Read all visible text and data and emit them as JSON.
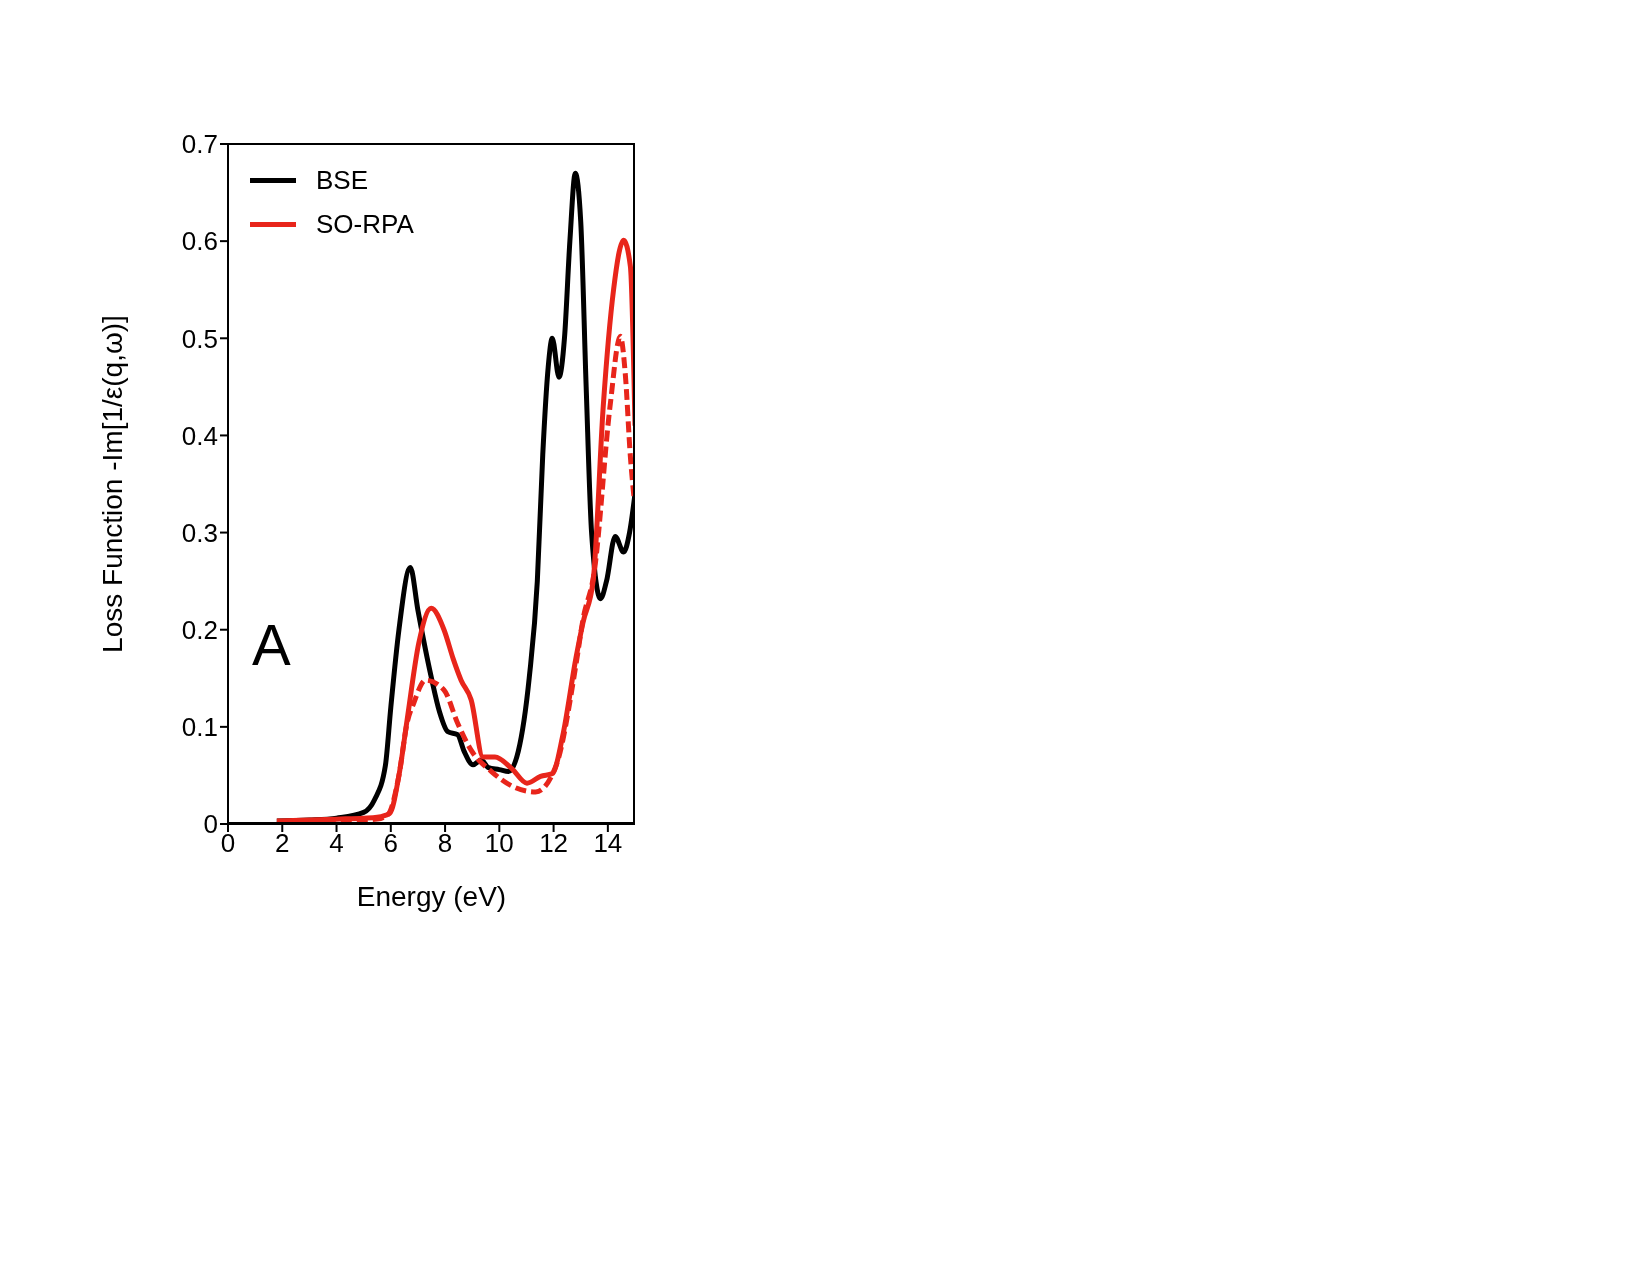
{
  "chart_data": {
    "type": "line",
    "xlabel": "Energy (eV)",
    "ylabel": "Loss Function -Im[1/ε(q,ω)]",
    "annotations": [
      "A"
    ],
    "xlim": [
      0,
      15
    ],
    "xticks": [
      0,
      2,
      4,
      6,
      8,
      10,
      12,
      14
    ],
    "ylim": [
      0,
      0.7
    ],
    "yticks": [
      0,
      0.1,
      0.2,
      0.3,
      0.4,
      0.5,
      0.6,
      0.7
    ],
    "grid": false,
    "legend": "top left",
    "marker": "none",
    "series": [
      {
        "name": "BSE",
        "color": "#000000",
        "line_style": "solid",
        "x": [
          1.8,
          3,
          4,
          5,
          5.4,
          5.8,
          6.0,
          6.3,
          6.72,
          7.0,
          7.5,
          7.8,
          8.1,
          8.46,
          8.7,
          9.03,
          9.33,
          9.6,
          10.0,
          10.34,
          10.7,
          11.1,
          11.4,
          11.6,
          11.8,
          11.95,
          12.2,
          12.4,
          12.6,
          12.8,
          13.0,
          13.2,
          13.4,
          13.73,
          13.95,
          14.27,
          14.58,
          14.8,
          15.0
        ],
        "values": [
          0.003,
          0.004,
          0.006,
          0.012,
          0.025,
          0.06,
          0.12,
          0.2,
          0.264,
          0.22,
          0.15,
          0.115,
          0.095,
          0.092,
          0.075,
          0.061,
          0.066,
          0.058,
          0.056,
          0.054,
          0.075,
          0.15,
          0.25,
          0.38,
          0.47,
          0.5,
          0.46,
          0.5,
          0.6,
          0.67,
          0.62,
          0.45,
          0.3,
          0.232,
          0.25,
          0.296,
          0.28,
          0.3,
          0.34
        ]
      },
      {
        "name": "SO-RPA",
        "color": "#e8251b",
        "line_style": "solid",
        "x": [
          1.8,
          3,
          4,
          5,
          5.5,
          5.96,
          6.3,
          6.6,
          7.03,
          7.49,
          7.96,
          8.3,
          8.59,
          8.96,
          9.4,
          9.84,
          10.46,
          11.02,
          11.52,
          11.96,
          12.33,
          12.83,
          13.08,
          13.46,
          13.83,
          14.21,
          14.58,
          14.83,
          15.0
        ],
        "values": [
          0.003,
          0.004,
          0.005,
          0.006,
          0.007,
          0.011,
          0.05,
          0.107,
          0.186,
          0.222,
          0.2,
          0.17,
          0.148,
          0.128,
          0.069,
          0.069,
          0.057,
          0.042,
          0.049,
          0.052,
          0.09,
          0.172,
          0.207,
          0.251,
          0.43,
          0.55,
          0.601,
          0.574,
          0.41
        ]
      },
      {
        "color": "#e8251b",
        "line_style": "dashed",
        "x": [
          1.8,
          3,
          4,
          5,
          5.5,
          5.9,
          6.3,
          6.6,
          6.84,
          7.28,
          7.96,
          8.46,
          8.96,
          9.71,
          10.4,
          11.34,
          12.09,
          12.83,
          13.08,
          13.5,
          14.08,
          14.46,
          14.64,
          14.83,
          14.96
        ],
        "values": [
          0.0,
          0.002,
          0.003,
          0.004,
          0.005,
          0.01,
          0.05,
          0.104,
          0.124,
          0.148,
          0.138,
          0.104,
          0.076,
          0.054,
          0.04,
          0.033,
          0.06,
          0.165,
          0.21,
          0.26,
          0.43,
          0.502,
          0.464,
          0.378,
          0.337
        ]
      }
    ]
  }
}
